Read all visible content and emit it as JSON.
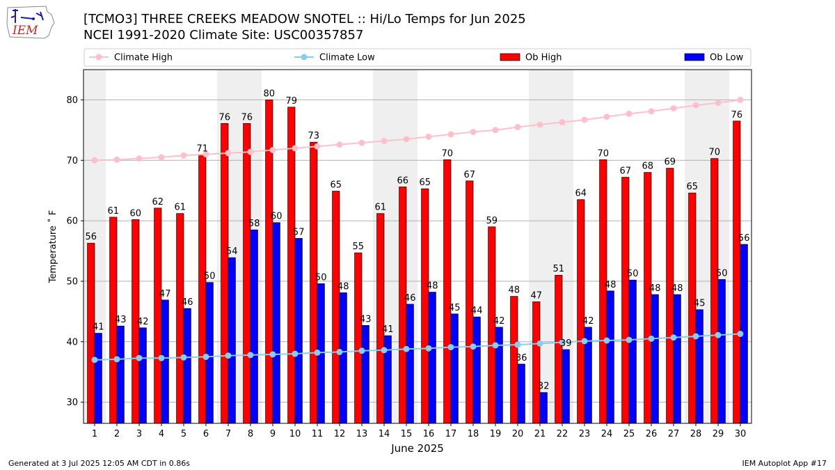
{
  "title": "[TCMO3] THREE CREEKS MEADOW SNOTEL :: Hi/Lo Temps for Jun 2025",
  "subtitle": "NCEI 1991-2020 Climate Site: USC00357857",
  "logo_text": "IEM",
  "footer_left": "Generated at 3 Jul 2025 12:05 AM CDT in 0.86s",
  "footer_right": "IEM Autoplot App #17",
  "chart_data": {
    "type": "bar",
    "xlabel": "June 2025",
    "ylabel": "Temperature ˚ F",
    "categories": [
      "1",
      "2",
      "3",
      "4",
      "5",
      "6",
      "7",
      "8",
      "9",
      "10",
      "11",
      "12",
      "13",
      "14",
      "15",
      "16",
      "17",
      "18",
      "19",
      "20",
      "21",
      "22",
      "23",
      "24",
      "25",
      "26",
      "27",
      "28",
      "29",
      "30"
    ],
    "ylim": [
      26.5,
      85
    ],
    "yticks": [
      30,
      40,
      50,
      60,
      70,
      80
    ],
    "grid": true,
    "legend_position": "top",
    "weekend_shading_days": [
      1,
      7,
      8,
      14,
      15,
      21,
      22,
      28,
      29
    ],
    "series": [
      {
        "name": "Ob High",
        "kind": "bar",
        "color": "#ff0000",
        "values": [
          56,
          61,
          60,
          62,
          61,
          71,
          76,
          76,
          80,
          79,
          73,
          65,
          55,
          61,
          66,
          65,
          70,
          67,
          59,
          48,
          47,
          51,
          64,
          70,
          67,
          68,
          69,
          65,
          70,
          76
        ],
        "plotted": [
          56.3,
          60.6,
          60.2,
          62.1,
          61.2,
          70.9,
          76.1,
          76.1,
          80.0,
          78.8,
          73.0,
          64.9,
          54.7,
          61.2,
          65.6,
          65.3,
          70.1,
          66.6,
          59.0,
          47.5,
          46.6,
          51.0,
          63.5,
          70.1,
          67.2,
          68.0,
          68.7,
          64.6,
          70.3,
          76.5
        ]
      },
      {
        "name": "Ob Low",
        "kind": "bar",
        "color": "#0000ff",
        "values": [
          41,
          43,
          42,
          47,
          46,
          50,
          54,
          58,
          60,
          57,
          50,
          48,
          43,
          41,
          46,
          48,
          45,
          44,
          42,
          36,
          32,
          39,
          42,
          48,
          50,
          48,
          48,
          45,
          50,
          56
        ],
        "plotted": [
          41.4,
          42.6,
          42.3,
          46.9,
          45.5,
          49.8,
          53.9,
          58.5,
          59.7,
          57.1,
          49.6,
          48.1,
          42.7,
          41.0,
          46.2,
          48.2,
          44.6,
          44.1,
          42.4,
          36.3,
          31.6,
          38.7,
          42.4,
          48.4,
          50.2,
          47.8,
          47.8,
          45.3,
          50.3,
          56.1
        ]
      },
      {
        "name": "Climate High",
        "kind": "line",
        "color": "#ffc0cb",
        "values": [
          70.0,
          70.1,
          70.3,
          70.5,
          70.8,
          71.0,
          71.2,
          71.4,
          71.7,
          72.0,
          72.3,
          72.6,
          72.9,
          73.2,
          73.5,
          73.9,
          74.3,
          74.7,
          75.0,
          75.5,
          75.9,
          76.3,
          76.7,
          77.2,
          77.7,
          78.1,
          78.6,
          79.1,
          79.5,
          80.0
        ]
      },
      {
        "name": "Climate Low",
        "kind": "line",
        "color": "#87ceeb",
        "values": [
          37.0,
          37.1,
          37.3,
          37.3,
          37.4,
          37.5,
          37.7,
          37.8,
          37.9,
          38.0,
          38.2,
          38.3,
          38.5,
          38.6,
          38.8,
          38.9,
          39.1,
          39.2,
          39.4,
          39.5,
          39.7,
          39.9,
          40.1,
          40.2,
          40.3,
          40.5,
          40.7,
          40.9,
          41.1,
          41.3
        ]
      }
    ]
  }
}
